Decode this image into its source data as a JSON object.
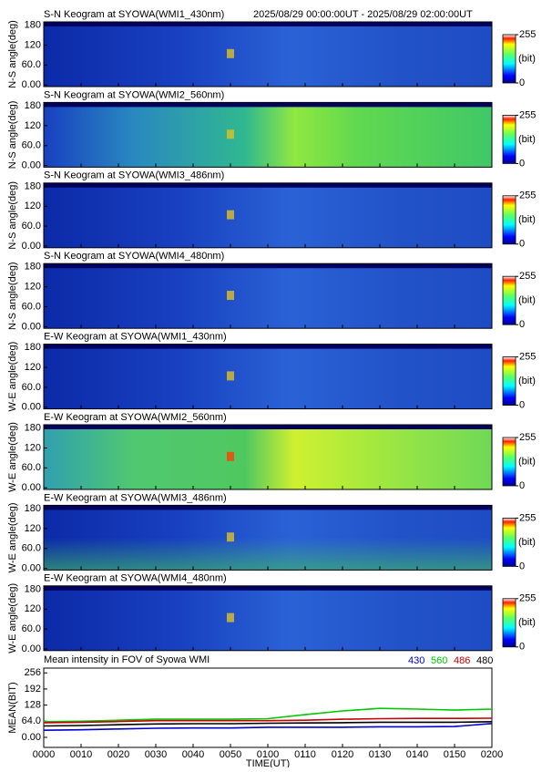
{
  "chart_data": [
    {
      "type": "heatmap",
      "title": "S-N Keogram at SYOWA(WMI1_430nm)",
      "subtitle": "2025/08/29 00:00:00UT - 2025/08/29 02:00:00UT",
      "ylabel": "N-S angle(deg)",
      "ylim": [
        -5,
        190
      ],
      "yticks": [
        {
          "value": 0,
          "label": "0.00"
        },
        {
          "value": 60,
          "label": "60.0"
        },
        120,
        180
      ],
      "clim": [
        0,
        255
      ],
      "cticks": [
        0,
        255
      ],
      "colorbar_label": "(bit)"
    },
    {
      "type": "heatmap",
      "title": "S-N Keogram at SYOWA(WMI2_560nm)",
      "ylabel": "N-S angle(deg)",
      "ylim": [
        -5,
        190
      ],
      "yticks": [
        {
          "value": 0,
          "label": "0.00"
        },
        {
          "value": 60,
          "label": "60.0"
        },
        120,
        180
      ],
      "clim": [
        0,
        255
      ],
      "cticks": [
        0,
        255
      ],
      "colorbar_label": "(bit)"
    },
    {
      "type": "heatmap",
      "title": "S-N Keogram at SYOWA(WMI3_486nm)",
      "ylabel": "N-S angle(deg)",
      "ylim": [
        -5,
        190
      ],
      "yticks": [
        {
          "value": 0,
          "label": "0.00"
        },
        {
          "value": 60,
          "label": "60.0"
        },
        120,
        180
      ],
      "clim": [
        0,
        255
      ],
      "cticks": [
        0,
        255
      ],
      "colorbar_label": "(bit)"
    },
    {
      "type": "heatmap",
      "title": "S-N Keogram at SYOWA(WMI4_480nm)",
      "ylabel": "N-S angle(deg)",
      "ylim": [
        -5,
        190
      ],
      "yticks": [
        {
          "value": 0,
          "label": "0.00"
        },
        {
          "value": 60,
          "label": "60.0"
        },
        120,
        180
      ],
      "clim": [
        0,
        255
      ],
      "cticks": [
        0,
        255
      ],
      "colorbar_label": "(bit)"
    },
    {
      "type": "heatmap",
      "title": "E-W Keogram at SYOWA(WMI1_430nm)",
      "ylabel": "W-E angle(deg)",
      "ylim": [
        -5,
        190
      ],
      "yticks": [
        {
          "value": 0,
          "label": "0.00"
        },
        {
          "value": 60,
          "label": "60.0"
        },
        120,
        180
      ],
      "clim": [
        0,
        255
      ],
      "cticks": [
        0,
        255
      ],
      "colorbar_label": "(bit)"
    },
    {
      "type": "heatmap",
      "title": "E-W Keogram at SYOWA(WMI2_560nm)",
      "ylabel": "W-E angle(deg)",
      "ylim": [
        -5,
        190
      ],
      "yticks": [
        {
          "value": 0,
          "label": "0.00"
        },
        {
          "value": 60,
          "label": "60.0"
        },
        120,
        180
      ],
      "clim": [
        0,
        255
      ],
      "cticks": [
        0,
        255
      ],
      "colorbar_label": "(bit)"
    },
    {
      "type": "heatmap",
      "title": "E-W Keogram at SYOWA(WMI3_486nm)",
      "ylabel": "W-E angle(deg)",
      "ylim": [
        -5,
        190
      ],
      "yticks": [
        {
          "value": 0,
          "label": "0.00"
        },
        {
          "value": 60,
          "label": "60.0"
        },
        120,
        180
      ],
      "clim": [
        0,
        255
      ],
      "cticks": [
        0,
        255
      ],
      "colorbar_label": "(bit)"
    },
    {
      "type": "heatmap",
      "title": "E-W Keogram at SYOWA(WMI4_480nm)",
      "ylabel": "W-E angle(deg)",
      "ylim": [
        -5,
        190
      ],
      "yticks": [
        {
          "value": 0,
          "label": "0.00"
        },
        {
          "value": 60,
          "label": "60.0"
        },
        120,
        180
      ],
      "clim": [
        0,
        255
      ],
      "cticks": [
        0,
        255
      ],
      "colorbar_label": "(bit)"
    },
    {
      "type": "line",
      "title": "Mean intensity in FOV of Syowa WMI",
      "ylabel": "MEAN(BIT)",
      "xlabel": "TIME(UT)",
      "x": [
        0,
        10,
        20,
        30,
        40,
        50,
        60,
        70,
        80,
        90,
        100,
        110,
        120
      ],
      "xlim": [
        0,
        120
      ],
      "xticks": [
        {
          "value": 0,
          "label": "0000"
        },
        {
          "value": 10,
          "label": "0010"
        },
        {
          "value": 20,
          "label": "0020"
        },
        {
          "value": 30,
          "label": "0030"
        },
        {
          "value": 40,
          "label": "0040"
        },
        {
          "value": 50,
          "label": "0050"
        },
        {
          "value": 60,
          "label": "0100"
        },
        {
          "value": 70,
          "label": "0110"
        },
        {
          "value": 80,
          "label": "0120"
        },
        {
          "value": 90,
          "label": "0130"
        },
        {
          "value": 100,
          "label": "0140"
        },
        {
          "value": 110,
          "label": "0150"
        },
        {
          "value": 120,
          "label": "0200"
        }
      ],
      "ylim": [
        -40,
        275
      ],
      "yticks": [
        {
          "value": 0,
          "label": "0.00"
        },
        {
          "value": 64,
          "label": "64.0"
        },
        128,
        192,
        256
      ],
      "series": [
        {
          "name": "430",
          "color": "#0000c8",
          "values": [
            28,
            30,
            33,
            36,
            37,
            37,
            40,
            40,
            40,
            42,
            42,
            43,
            55
          ]
        },
        {
          "name": "560",
          "color": "#00c800",
          "values": [
            62,
            64,
            68,
            72,
            72,
            72,
            74,
            90,
            105,
            115,
            112,
            108,
            112
          ]
        },
        {
          "name": "486",
          "color": "#c80000",
          "values": [
            58,
            60,
            63,
            66,
            66,
            66,
            66,
            68,
            72,
            74,
            75,
            75,
            76
          ]
        },
        {
          "name": "480",
          "color": "#000000",
          "values": [
            45,
            47,
            50,
            53,
            54,
            54,
            56,
            57,
            58,
            60,
            60,
            60,
            62
          ]
        }
      ]
    }
  ]
}
